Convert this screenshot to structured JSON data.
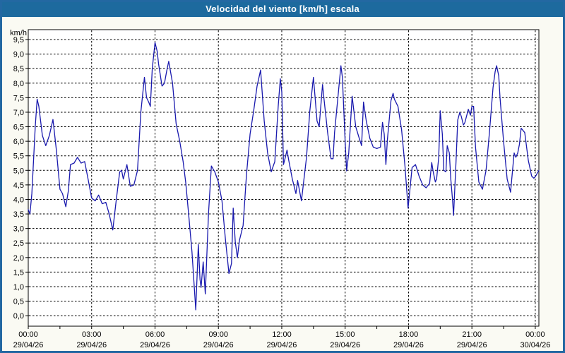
{
  "window": {
    "title": "Velocidad del viento [km/h] escala"
  },
  "colors": {
    "title_bar_bg": "#1d6a9e",
    "title_text": "#ffffff",
    "frame_border": "#2368a2",
    "content_bg": "#fafaf3",
    "plot_bg": "#ffffff",
    "grid_color": "#000000",
    "line_color": "#1a1aae"
  },
  "chart_data": {
    "type": "line",
    "title": "Velocidad del viento [km/h] escala",
    "xlabel": "",
    "ylabel": "km/h",
    "ylim": [
      0,
      9.5
    ],
    "y_tick_step": 0.5,
    "xlim_hours": [
      0,
      24.17
    ],
    "x_minor_tick_hours": 1.5,
    "grid": "dashed",
    "legend": "none",
    "y_ticks": [
      {
        "value": 0.0,
        "label": "0,0"
      },
      {
        "value": 0.5,
        "label": "0,5"
      },
      {
        "value": 1.0,
        "label": "1,0"
      },
      {
        "value": 1.5,
        "label": "1,5"
      },
      {
        "value": 2.0,
        "label": "2,0"
      },
      {
        "value": 2.5,
        "label": "2,5"
      },
      {
        "value": 3.0,
        "label": "3,0"
      },
      {
        "value": 3.5,
        "label": "3,5"
      },
      {
        "value": 4.0,
        "label": "4,0"
      },
      {
        "value": 4.5,
        "label": "4,5"
      },
      {
        "value": 5.0,
        "label": "5,0"
      },
      {
        "value": 5.5,
        "label": "5,5"
      },
      {
        "value": 6.0,
        "label": "6,0"
      },
      {
        "value": 6.5,
        "label": "6,5"
      },
      {
        "value": 7.0,
        "label": "7,0"
      },
      {
        "value": 7.5,
        "label": "7,5"
      },
      {
        "value": 8.0,
        "label": "8,0"
      },
      {
        "value": 8.5,
        "label": "8,5"
      },
      {
        "value": 9.0,
        "label": "9,0"
      },
      {
        "value": 9.5,
        "label": "9,5"
      }
    ],
    "x_ticks": [
      {
        "hours": 0,
        "time": "00:00",
        "date": "29/04/26"
      },
      {
        "hours": 3,
        "time": "03:00",
        "date": "29/04/26"
      },
      {
        "hours": 6,
        "time": "06:00",
        "date": "29/04/26"
      },
      {
        "hours": 9,
        "time": "09:00",
        "date": "29/04/26"
      },
      {
        "hours": 12,
        "time": "12:00",
        "date": "29/04/26"
      },
      {
        "hours": 15,
        "time": "15:00",
        "date": "29/04/26"
      },
      {
        "hours": 18,
        "time": "18:00",
        "date": "29/04/26"
      },
      {
        "hours": 21,
        "time": "21:00",
        "date": "29/04/26"
      },
      {
        "hours": 24,
        "time": "00:00",
        "date": "30/04/26"
      }
    ],
    "series": [
      {
        "name": "Velocidad del viento",
        "units": "km/h",
        "points": [
          [
            0.0,
            3.65
          ],
          [
            0.08,
            3.5
          ],
          [
            0.17,
            4.2
          ],
          [
            0.33,
            6.5
          ],
          [
            0.42,
            7.45
          ],
          [
            0.5,
            7.2
          ],
          [
            0.67,
            6.2
          ],
          [
            0.83,
            5.85
          ],
          [
            1.0,
            6.2
          ],
          [
            1.17,
            6.75
          ],
          [
            1.33,
            5.7
          ],
          [
            1.5,
            4.35
          ],
          [
            1.62,
            4.2
          ],
          [
            1.78,
            3.75
          ],
          [
            1.9,
            4.3
          ],
          [
            2.0,
            5.2
          ],
          [
            2.17,
            5.25
          ],
          [
            2.33,
            5.45
          ],
          [
            2.5,
            5.25
          ],
          [
            2.67,
            5.3
          ],
          [
            2.83,
            4.7
          ],
          [
            3.0,
            4.05
          ],
          [
            3.17,
            3.95
          ],
          [
            3.33,
            4.15
          ],
          [
            3.5,
            3.85
          ],
          [
            3.67,
            3.9
          ],
          [
            3.83,
            3.5
          ],
          [
            4.0,
            2.95
          ],
          [
            4.17,
            4.0
          ],
          [
            4.33,
            4.95
          ],
          [
            4.42,
            5.0
          ],
          [
            4.5,
            4.7
          ],
          [
            4.67,
            5.2
          ],
          [
            4.83,
            4.45
          ],
          [
            5.0,
            4.5
          ],
          [
            5.17,
            5.0
          ],
          [
            5.33,
            7.0
          ],
          [
            5.5,
            8.2
          ],
          [
            5.6,
            7.5
          ],
          [
            5.7,
            7.35
          ],
          [
            5.78,
            7.2
          ],
          [
            5.87,
            8.5
          ],
          [
            6.0,
            9.4
          ],
          [
            6.1,
            9.1
          ],
          [
            6.17,
            8.65
          ],
          [
            6.33,
            7.9
          ],
          [
            6.45,
            8.0
          ],
          [
            6.55,
            8.4
          ],
          [
            6.65,
            8.75
          ],
          [
            6.83,
            8.0
          ],
          [
            7.0,
            6.6
          ],
          [
            7.17,
            6.0
          ],
          [
            7.33,
            5.3
          ],
          [
            7.45,
            4.6
          ],
          [
            7.58,
            3.6
          ],
          [
            7.75,
            2.2
          ],
          [
            7.93,
            0.2
          ],
          [
            8.05,
            2.45
          ],
          [
            8.13,
            1.25
          ],
          [
            8.18,
            0.97
          ],
          [
            8.28,
            1.85
          ],
          [
            8.38,
            0.75
          ],
          [
            8.53,
            3.5
          ],
          [
            8.67,
            5.15
          ],
          [
            8.83,
            4.95
          ],
          [
            9.0,
            4.6
          ],
          [
            9.17,
            3.95
          ],
          [
            9.33,
            2.65
          ],
          [
            9.5,
            1.45
          ],
          [
            9.62,
            1.8
          ],
          [
            9.7,
            3.7
          ],
          [
            9.8,
            2.55
          ],
          [
            9.9,
            2.0
          ],
          [
            10.0,
            2.6
          ],
          [
            10.17,
            3.1
          ],
          [
            10.33,
            4.85
          ],
          [
            10.5,
            6.25
          ],
          [
            10.67,
            7.05
          ],
          [
            10.83,
            7.9
          ],
          [
            11.0,
            8.45
          ],
          [
            11.17,
            6.7
          ],
          [
            11.33,
            5.6
          ],
          [
            11.5,
            4.95
          ],
          [
            11.67,
            5.3
          ],
          [
            11.83,
            7.2
          ],
          [
            11.93,
            8.15
          ],
          [
            12.0,
            7.7
          ],
          [
            12.08,
            5.2
          ],
          [
            12.17,
            5.45
          ],
          [
            12.25,
            5.7
          ],
          [
            12.33,
            5.35
          ],
          [
            12.5,
            4.7
          ],
          [
            12.67,
            4.2
          ],
          [
            12.75,
            4.65
          ],
          [
            12.93,
            3.95
          ],
          [
            13.17,
            5.45
          ],
          [
            13.33,
            7.05
          ],
          [
            13.5,
            8.2
          ],
          [
            13.67,
            6.7
          ],
          [
            13.77,
            6.5
          ],
          [
            13.93,
            7.95
          ],
          [
            14.0,
            7.45
          ],
          [
            14.17,
            6.3
          ],
          [
            14.33,
            5.4
          ],
          [
            14.43,
            5.4
          ],
          [
            14.5,
            6.3
          ],
          [
            14.67,
            7.6
          ],
          [
            14.8,
            8.6
          ],
          [
            14.87,
            8.2
          ],
          [
            15.0,
            6.0
          ],
          [
            15.07,
            4.98
          ],
          [
            15.17,
            5.6
          ],
          [
            15.33,
            7.55
          ],
          [
            15.5,
            6.5
          ],
          [
            15.67,
            6.1
          ],
          [
            15.78,
            5.85
          ],
          [
            15.87,
            7.35
          ],
          [
            16.0,
            6.7
          ],
          [
            16.17,
            6.1
          ],
          [
            16.33,
            5.8
          ],
          [
            16.5,
            5.75
          ],
          [
            16.67,
            5.8
          ],
          [
            16.77,
            6.65
          ],
          [
            16.85,
            6.25
          ],
          [
            16.93,
            5.2
          ],
          [
            17.0,
            6.05
          ],
          [
            17.17,
            7.4
          ],
          [
            17.27,
            7.65
          ],
          [
            17.33,
            7.45
          ],
          [
            17.5,
            7.2
          ],
          [
            17.67,
            6.4
          ],
          [
            17.83,
            5.15
          ],
          [
            17.98,
            3.7
          ],
          [
            18.17,
            5.1
          ],
          [
            18.33,
            5.2
          ],
          [
            18.5,
            4.8
          ],
          [
            18.67,
            4.5
          ],
          [
            18.83,
            4.4
          ],
          [
            19.0,
            4.55
          ],
          [
            19.1,
            5.27
          ],
          [
            19.17,
            4.95
          ],
          [
            19.27,
            4.6
          ],
          [
            19.33,
            4.7
          ],
          [
            19.43,
            5.45
          ],
          [
            19.5,
            7.05
          ],
          [
            19.6,
            6.25
          ],
          [
            19.67,
            5.0
          ],
          [
            19.77,
            4.95
          ],
          [
            19.83,
            5.85
          ],
          [
            19.93,
            5.6
          ],
          [
            20.0,
            4.7
          ],
          [
            20.08,
            4.0
          ],
          [
            20.13,
            3.45
          ],
          [
            20.25,
            5.3
          ],
          [
            20.33,
            6.73
          ],
          [
            20.43,
            7.0
          ],
          [
            20.5,
            6.85
          ],
          [
            20.6,
            6.56
          ],
          [
            20.67,
            6.65
          ],
          [
            20.83,
            7.1
          ],
          [
            20.93,
            6.9
          ],
          [
            21.0,
            7.2
          ],
          [
            21.08,
            7.2
          ],
          [
            21.17,
            5.8
          ],
          [
            21.33,
            4.6
          ],
          [
            21.5,
            4.35
          ],
          [
            21.67,
            5.0
          ],
          [
            21.83,
            6.3
          ],
          [
            22.0,
            7.85
          ],
          [
            22.1,
            8.4
          ],
          [
            22.17,
            8.6
          ],
          [
            22.27,
            8.25
          ],
          [
            22.33,
            7.5
          ],
          [
            22.5,
            6.0
          ],
          [
            22.67,
            4.7
          ],
          [
            22.83,
            4.25
          ],
          [
            23.0,
            5.6
          ],
          [
            23.08,
            5.45
          ],
          [
            23.17,
            5.6
          ],
          [
            23.25,
            5.9
          ],
          [
            23.33,
            6.45
          ],
          [
            23.5,
            6.3
          ],
          [
            23.67,
            5.35
          ],
          [
            23.83,
            4.8
          ],
          [
            23.93,
            4.73
          ],
          [
            24.0,
            4.78
          ],
          [
            24.17,
            5.0
          ]
        ]
      }
    ]
  }
}
